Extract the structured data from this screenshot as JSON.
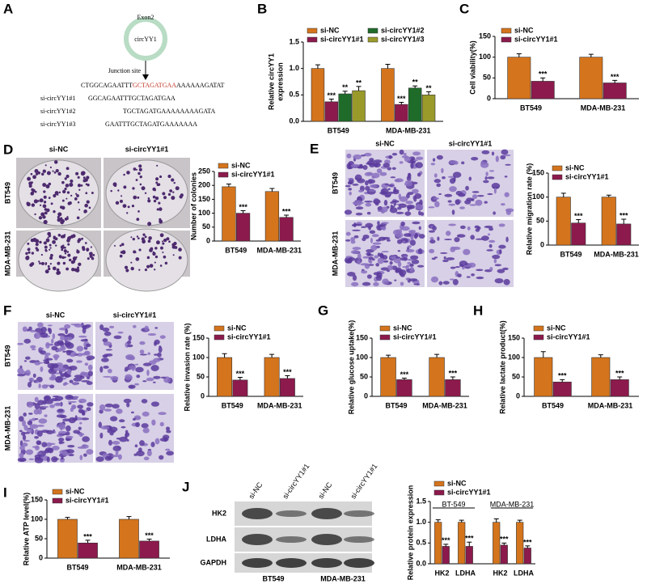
{
  "diagram": {
    "panel": "A",
    "exon": "Exon2",
    "circle": "circYY1",
    "junction": "Junction site",
    "sequence": [
      "CTGGCAGAATTT",
      "GCTAGATGAA",
      "AAAAAAGATAT"
    ],
    "sirnas": [
      {
        "name": "si-circYY1#1",
        "sequence": "GGCAGAATTTGCTAGATGAA"
      },
      {
        "name": "si-circYY1#2",
        "sequence": "TGCTAGATGAAAAAAAAGATA"
      },
      {
        "name": "si-circYY1#3",
        "sequence": "GAATTTGCTAGATGAAAAAAA"
      }
    ]
  },
  "image_panels": [
    {
      "columns": [
        "si-NC",
        "si-circYY1#1"
      ],
      "rows": [
        "BT549",
        "MDA-MB-231"
      ]
    },
    {
      "columns": [
        "si-NC",
        "si-circYY1#1"
      ],
      "rows": [
        "BT549",
        "MDA-MB-231"
      ]
    },
    {
      "columns": [
        "si-NC",
        "si-circYY1#1"
      ],
      "rows": [
        "BT549",
        "MDA-MB-231"
      ]
    }
  ],
  "blot": {
    "lanes": [
      "si-NC",
      "si-circYY1#1",
      "si-NC",
      "si-circYY1#1"
    ],
    "proteins": [
      "HK2",
      "LDHA",
      "GAPDH"
    ],
    "cell_lines": [
      "BT549",
      "MDA-MB-231"
    ]
  },
  "chart_data": [
    {
      "type": "bar",
      "panel": "B",
      "ylabel": [
        "Relative  circYY1",
        "expression"
      ],
      "categories": [
        "BT549",
        "MDA-MB-231"
      ],
      "ylim": [
        0,
        1.5
      ],
      "yticks": [
        {
          "value": 0,
          "label": "0.0"
        },
        {
          "value": 0.5,
          "label": "0.5"
        },
        {
          "value": 1,
          "label": "1.0"
        },
        {
          "value": 1.5,
          "label": "1.5"
        }
      ],
      "legend": "upper left",
      "series": [
        {
          "name": "si-NC",
          "color": "#d4741c",
          "values": [
            1.0,
            1.0
          ],
          "errors": [
            0.07,
            0.08
          ]
        },
        {
          "name": "si-circYY1#1",
          "color": "#8c1a4c",
          "values": [
            0.37,
            0.32
          ],
          "errors": [
            0.05,
            0.04
          ],
          "sig": [
            "***",
            "***"
          ]
        },
        {
          "name": "si-circYY1#2",
          "color": "#1f6b2a",
          "values": [
            0.52,
            0.63
          ],
          "errors": [
            0.05,
            0.04
          ],
          "sig": [
            "**",
            "**"
          ]
        },
        {
          "name": "si-circYY1#3",
          "color": "#9a9a2a",
          "values": [
            0.58,
            0.5
          ],
          "errors": [
            0.08,
            0.06
          ],
          "sig": [
            "**",
            "**"
          ]
        }
      ]
    },
    {
      "type": "bar",
      "panel": "C",
      "ylabel": "Cell viability(%)",
      "categories": [
        "BT549",
        "MDA-MB-231"
      ],
      "ylim": [
        0,
        150
      ],
      "yticks": [
        0,
        50,
        100,
        150
      ],
      "legend": "upper left",
      "series": [
        {
          "name": "si-NC",
          "color": "#d4741c",
          "values": [
            100,
            100
          ],
          "errors": [
            8,
            7
          ]
        },
        {
          "name": "si-circYY1#1",
          "color": "#8c1a4c",
          "values": [
            42,
            38
          ],
          "errors": [
            8,
            6
          ],
          "sig": [
            "***",
            "***"
          ]
        }
      ]
    },
    {
      "type": "bar",
      "panel": "D",
      "ylabel": "Number of colonies",
      "categories": [
        "BT549",
        "MDA-MB-231"
      ],
      "ylim": [
        0,
        250
      ],
      "yticks": [
        0,
        50,
        100,
        150,
        200,
        250
      ],
      "legend": "upper left",
      "series": [
        {
          "name": "si-NC",
          "color": "#d4741c",
          "values": [
            195,
            178
          ],
          "errors": [
            10,
            11
          ]
        },
        {
          "name": "si-circYY1#1",
          "color": "#8c1a4c",
          "values": [
            100,
            85
          ],
          "errors": [
            9,
            8
          ],
          "sig": [
            "***",
            "***"
          ]
        }
      ]
    },
    {
      "type": "bar",
      "panel": "E",
      "ylabel": "Relative migration rate (%)",
      "categories": [
        "BT549",
        "MDA-MB-231"
      ],
      "ylim": [
        0,
        150
      ],
      "yticks": [
        0,
        50,
        100,
        150
      ],
      "legend": "upper left",
      "series": [
        {
          "name": "si-NC",
          "color": "#d4741c",
          "values": [
            100,
            100
          ],
          "errors": [
            8,
            4
          ]
        },
        {
          "name": "si-circYY1#1",
          "color": "#8c1a4c",
          "values": [
            46,
            44
          ],
          "errors": [
            7,
            10
          ],
          "sig": [
            "***",
            "***"
          ]
        }
      ]
    },
    {
      "type": "bar",
      "panel": "F",
      "ylabel": "Relative invasion rate (%)",
      "categories": [
        "BT549",
        "MDA-MB-231"
      ],
      "ylim": [
        0,
        150
      ],
      "yticks": [
        0,
        50,
        100,
        150
      ],
      "legend": "upper left",
      "series": [
        {
          "name": "si-NC",
          "color": "#d4741c",
          "values": [
            100,
            100
          ],
          "errors": [
            10,
            8
          ]
        },
        {
          "name": "si-circYY1#1",
          "color": "#8c1a4c",
          "values": [
            42,
            46
          ],
          "errors": [
            7,
            7
          ],
          "sig": [
            "***",
            "***"
          ]
        }
      ]
    },
    {
      "type": "bar",
      "panel": "G",
      "ylabel": "Relative glucose uptake(%)",
      "categories": [
        "BT549",
        "MDA-MB-231"
      ],
      "ylim": [
        0,
        150
      ],
      "yticks": [
        0,
        50,
        100,
        150
      ],
      "legend": "upper left",
      "series": [
        {
          "name": "si-NC",
          "color": "#d4741c",
          "values": [
            100,
            100
          ],
          "errors": [
            6,
            8
          ]
        },
        {
          "name": "si-circYY1#1",
          "color": "#8c1a4c",
          "values": [
            43,
            43
          ],
          "errors": [
            4,
            7
          ],
          "sig": [
            "***",
            "***"
          ]
        }
      ]
    },
    {
      "type": "bar",
      "panel": "H",
      "ylabel": "Relative lactate product(%)",
      "categories": [
        "BT549",
        "MDA-MB-231"
      ],
      "ylim": [
        0,
        150
      ],
      "yticks": [
        0,
        50,
        100,
        150
      ],
      "legend": "upper left",
      "series": [
        {
          "name": "si-NC",
          "color": "#d4741c",
          "values": [
            100,
            100
          ],
          "errors": [
            15,
            7
          ]
        },
        {
          "name": "si-circYY1#1",
          "color": "#8c1a4c",
          "values": [
            37,
            43
          ],
          "errors": [
            6,
            7
          ],
          "sig": [
            "***",
            "***"
          ]
        }
      ]
    },
    {
      "type": "bar",
      "panel": "I",
      "ylabel": "Relative ATP level(%)",
      "categories": [
        "BT549",
        "MDA-MB-231"
      ],
      "ylim": [
        0,
        150
      ],
      "yticks": [
        0,
        50,
        100,
        150
      ],
      "legend": "upper left",
      "series": [
        {
          "name": "si-NC",
          "color": "#d4741c",
          "values": [
            100,
            100
          ],
          "errors": [
            5,
            7
          ]
        },
        {
          "name": "si-circYY1#1",
          "color": "#8c1a4c",
          "values": [
            39,
            44
          ],
          "errors": [
            7,
            5
          ],
          "sig": [
            "***",
            "***"
          ]
        }
      ]
    },
    {
      "type": "bar",
      "panel": "J",
      "ylabel": "Relative protein expression",
      "categories": [
        "HK2",
        "LDHA",
        "HK2",
        "LDHA"
      ],
      "group_labels": [
        "BT-549",
        "MDA-MB-231"
      ],
      "ylim": [
        0,
        1.5
      ],
      "yticks": [
        {
          "value": 0,
          "label": "0.0"
        },
        {
          "value": 0.5,
          "label": "0.5"
        },
        {
          "value": 1,
          "label": "1.0"
        },
        {
          "value": 1.5,
          "label": "1.5"
        }
      ],
      "legend": "upper left",
      "series": [
        {
          "name": "si-NC",
          "color": "#d4741c",
          "values": [
            1.0,
            1.0,
            1.0,
            1.0
          ],
          "errors": [
            0.06,
            0.05,
            0.08,
            0.05
          ]
        },
        {
          "name": "si-circYY1#1",
          "color": "#8c1a4c",
          "values": [
            0.42,
            0.42,
            0.45,
            0.38
          ],
          "errors": [
            0.05,
            0.1,
            0.05,
            0.05
          ],
          "sig": [
            "***",
            "***",
            "***",
            "***"
          ]
        }
      ]
    }
  ]
}
